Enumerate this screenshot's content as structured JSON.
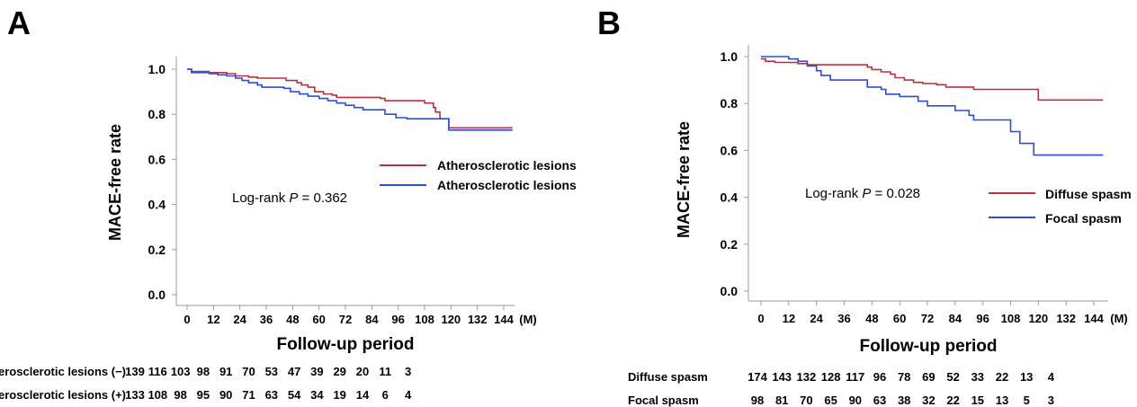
{
  "chart_data": [
    {
      "type": "line",
      "panel_label": "A",
      "xlabel": "Follow-up period",
      "x_unit": "(M)",
      "ylabel": "MACE-free rate",
      "xlim": [
        0,
        150
      ],
      "ylim": [
        0,
        1
      ],
      "x_ticks": [
        "0",
        "12",
        "24",
        "36",
        "48",
        "60",
        "72",
        "84",
        "96",
        "108",
        "120",
        "132",
        "144"
      ],
      "y_ticks": [
        "0.0",
        "0.2",
        "0.4",
        "0.6",
        "0.8",
        "1.0"
      ],
      "annotation": {
        "prefix": "Log-rank ",
        "p": "P",
        "suffix": " = 0.362"
      },
      "legend_position": "right",
      "series": [
        {
          "name": "Atherosclerotic lesions",
          "color": "#b5333d",
          "points": [
            [
              0,
              1.0
            ],
            [
              2,
              0.99
            ],
            [
              10,
              0.985
            ],
            [
              18,
              0.98
            ],
            [
              22,
              0.97
            ],
            [
              28,
              0.965
            ],
            [
              32,
              0.96
            ],
            [
              43,
              0.96
            ],
            [
              45,
              0.95
            ],
            [
              50,
              0.94
            ],
            [
              52,
              0.93
            ],
            [
              55,
              0.92
            ],
            [
              58,
              0.9
            ],
            [
              62,
              0.89
            ],
            [
              66,
              0.885
            ],
            [
              68,
              0.875
            ],
            [
              88,
              0.87
            ],
            [
              90,
              0.86
            ],
            [
              108,
              0.85
            ],
            [
              112,
              0.83
            ],
            [
              113,
              0.81
            ],
            [
              115,
              0.78
            ],
            [
              118,
              0.78
            ],
            [
              119,
              0.74
            ],
            [
              148,
              0.74
            ]
          ]
        },
        {
          "name": "Atherosclerotic lesions",
          "color": "#2b4fd1",
          "points": [
            [
              0,
              1.0
            ],
            [
              2,
              0.985
            ],
            [
              10,
              0.98
            ],
            [
              14,
              0.975
            ],
            [
              18,
              0.97
            ],
            [
              22,
              0.96
            ],
            [
              25,
              0.95
            ],
            [
              28,
              0.94
            ],
            [
              32,
              0.93
            ],
            [
              34,
              0.92
            ],
            [
              44,
              0.915
            ],
            [
              47,
              0.9
            ],
            [
              51,
              0.89
            ],
            [
              55,
              0.88
            ],
            [
              60,
              0.87
            ],
            [
              64,
              0.86
            ],
            [
              68,
              0.85
            ],
            [
              72,
              0.84
            ],
            [
              76,
              0.83
            ],
            [
              80,
              0.82
            ],
            [
              88,
              0.82
            ],
            [
              90,
              0.8
            ],
            [
              95,
              0.785
            ],
            [
              100,
              0.78
            ],
            [
              112,
              0.78
            ],
            [
              118,
              0.78
            ],
            [
              119,
              0.73
            ],
            [
              148,
              0.73
            ]
          ]
        }
      ],
      "risk_table": {
        "rows": [
          {
            "label": "Atherosclerotic lesions (−)",
            "values": [
              139,
              116,
              103,
              98,
              91,
              70,
              53,
              47,
              39,
              29,
              20,
              11,
              3
            ]
          },
          {
            "label": "Atherosclerotic lesions (+)",
            "values": [
              133,
              108,
              98,
              95,
              90,
              71,
              63,
              54,
              34,
              19,
              14,
              6,
              4
            ]
          }
        ]
      }
    },
    {
      "type": "line",
      "panel_label": "B",
      "xlabel": "Follow-up period",
      "x_unit": "(M)",
      "ylabel": "MACE-free rate",
      "xlim": [
        0,
        150
      ],
      "ylim": [
        0,
        1
      ],
      "x_ticks": [
        "0",
        "12",
        "24",
        "36",
        "48",
        "60",
        "72",
        "84",
        "96",
        "108",
        "120",
        "132",
        "144"
      ],
      "y_ticks": [
        "0.0",
        "0.2",
        "0.4",
        "0.6",
        "0.8",
        "1.0"
      ],
      "annotation": {
        "prefix": "Log-rank ",
        "p": "P",
        "suffix": " = 0.028"
      },
      "legend_position": "right",
      "series": [
        {
          "name": "Diffuse spasm",
          "color": "#b5333d",
          "points": [
            [
              0,
              0.99
            ],
            [
              2,
              0.98
            ],
            [
              6,
              0.975
            ],
            [
              12,
              0.975
            ],
            [
              16,
              0.97
            ],
            [
              20,
              0.965
            ],
            [
              26,
              0.965
            ],
            [
              45,
              0.965
            ],
            [
              46,
              0.955
            ],
            [
              48,
              0.945
            ],
            [
              52,
              0.935
            ],
            [
              56,
              0.925
            ],
            [
              58,
              0.91
            ],
            [
              62,
              0.9
            ],
            [
              66,
              0.89
            ],
            [
              70,
              0.885
            ],
            [
              76,
              0.88
            ],
            [
              80,
              0.87
            ],
            [
              90,
              0.87
            ],
            [
              92,
              0.86
            ],
            [
              114,
              0.86
            ],
            [
              118,
              0.86
            ],
            [
              120,
              0.815
            ],
            [
              148,
              0.815
            ]
          ]
        },
        {
          "name": "Focal spasm",
          "color": "#2b4fd1",
          "points": [
            [
              0,
              1.0
            ],
            [
              10,
              1.0
            ],
            [
              12,
              0.99
            ],
            [
              16,
              0.98
            ],
            [
              20,
              0.96
            ],
            [
              24,
              0.94
            ],
            [
              26,
              0.92
            ],
            [
              30,
              0.9
            ],
            [
              44,
              0.9
            ],
            [
              46,
              0.87
            ],
            [
              52,
              0.86
            ],
            [
              54,
              0.84
            ],
            [
              60,
              0.83
            ],
            [
              68,
              0.81
            ],
            [
              72,
              0.79
            ],
            [
              82,
              0.79
            ],
            [
              84,
              0.77
            ],
            [
              90,
              0.75
            ],
            [
              92,
              0.73
            ],
            [
              106,
              0.73
            ],
            [
              108,
              0.68
            ],
            [
              112,
              0.63
            ],
            [
              116,
              0.63
            ],
            [
              118,
              0.58
            ],
            [
              148,
              0.58
            ]
          ]
        }
      ],
      "risk_table": {
        "rows": [
          {
            "label": "Diffuse spasm",
            "values": [
              174,
              143,
              132,
              128,
              117,
              96,
              78,
              69,
              52,
              33,
              22,
              13,
              4
            ]
          },
          {
            "label": "Focal spasm",
            "values": [
              98,
              81,
              70,
              65,
              90,
              63,
              38,
              32,
              22,
              15,
              13,
              5,
              3
            ]
          }
        ]
      }
    }
  ]
}
